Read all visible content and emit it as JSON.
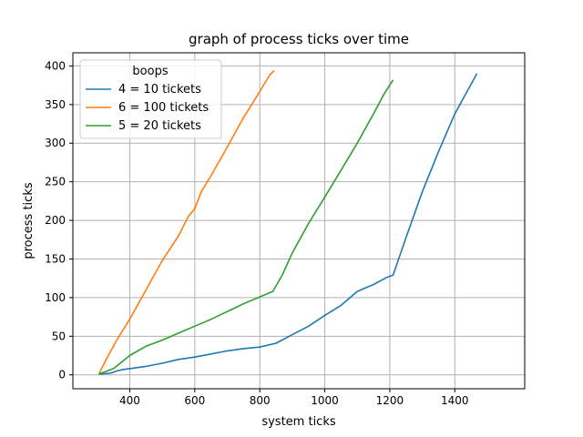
{
  "chart_data": {
    "type": "line",
    "title": "graph of process ticks over time",
    "xlabel": "system ticks",
    "ylabel": "process ticks",
    "xlim": [
      225,
      1615
    ],
    "ylim": [
      -18,
      417
    ],
    "xticks": [
      400,
      600,
      800,
      1000,
      1200,
      1400
    ],
    "yticks": [
      0,
      50,
      100,
      150,
      200,
      250,
      300,
      350,
      400
    ],
    "grid": true,
    "legend": {
      "title": "boops",
      "placement": "top-left"
    },
    "series": [
      {
        "name": "4 = 10 tickets",
        "color": "#1f77b4",
        "points": [
          [
            305,
            1
          ],
          [
            340,
            2
          ],
          [
            360,
            5
          ],
          [
            380,
            7
          ],
          [
            400,
            8
          ],
          [
            450,
            11
          ],
          [
            500,
            15
          ],
          [
            550,
            20
          ],
          [
            600,
            23
          ],
          [
            650,
            27
          ],
          [
            700,
            31
          ],
          [
            750,
            34
          ],
          [
            800,
            36
          ],
          [
            850,
            41
          ],
          [
            900,
            52
          ],
          [
            950,
            63
          ],
          [
            1000,
            77
          ],
          [
            1050,
            90
          ],
          [
            1100,
            108
          ],
          [
            1150,
            117
          ],
          [
            1190,
            126
          ],
          [
            1210,
            129
          ],
          [
            1250,
            178
          ],
          [
            1300,
            237
          ],
          [
            1350,
            289
          ],
          [
            1400,
            338
          ],
          [
            1468,
            390
          ]
        ]
      },
      {
        "name": "6 = 100 tickets",
        "color": "#ff7f0e",
        "points": [
          [
            305,
            1
          ],
          [
            330,
            22
          ],
          [
            360,
            45
          ],
          [
            400,
            72
          ],
          [
            450,
            110
          ],
          [
            500,
            148
          ],
          [
            550,
            180
          ],
          [
            580,
            205
          ],
          [
            600,
            215
          ],
          [
            620,
            237
          ],
          [
            650,
            258
          ],
          [
            700,
            295
          ],
          [
            750,
            333
          ],
          [
            800,
            367
          ],
          [
            830,
            388
          ],
          [
            845,
            394
          ]
        ]
      },
      {
        "name": "5 = 20 tickets",
        "color": "#2ca02c",
        "points": [
          [
            305,
            1
          ],
          [
            350,
            8
          ],
          [
            400,
            25
          ],
          [
            450,
            37
          ],
          [
            500,
            45
          ],
          [
            550,
            54
          ],
          [
            600,
            63
          ],
          [
            650,
            72
          ],
          [
            700,
            82
          ],
          [
            750,
            92
          ],
          [
            800,
            101
          ],
          [
            840,
            108
          ],
          [
            870,
            130
          ],
          [
            900,
            158
          ],
          [
            950,
            196
          ],
          [
            1000,
            230
          ],
          [
            1050,
            265
          ],
          [
            1100,
            300
          ],
          [
            1150,
            338
          ],
          [
            1180,
            362
          ],
          [
            1210,
            382
          ]
        ]
      }
    ]
  }
}
